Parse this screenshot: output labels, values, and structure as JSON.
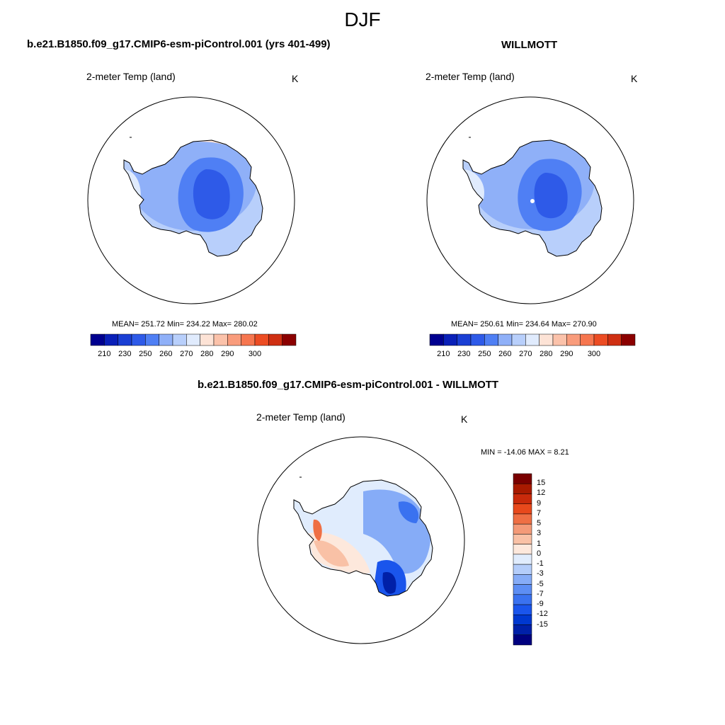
{
  "figure": {
    "title": "DJF"
  },
  "colors": {
    "continent_outline": "#000000",
    "circle_outline": "#000000",
    "abs_palette": [
      "#00008f",
      "#0a20b8",
      "#1a3fd4",
      "#2e5ae8",
      "#4f7ff4",
      "#8fb0f8",
      "#b8cffb",
      "#e0ebfd",
      "#fde3d6",
      "#fbc2aa",
      "#f99c7c",
      "#f6764f",
      "#ec4c23",
      "#cf2f12",
      "#8b0000"
    ],
    "diff_palette": [
      "#00007f",
      "#0020a8",
      "#0038d0",
      "#1a55ec",
      "#3a72f0",
      "#5d8ef4",
      "#86acf7",
      "#b4cdfa",
      "#e0ecfd",
      "#fde8dc",
      "#f9c1a6",
      "#f49a78",
      "#ef6f44",
      "#e8491c",
      "#c92a0b",
      "#a81a00",
      "#7a0000"
    ]
  },
  "chart_data": [
    {
      "type": "map",
      "panel": "left",
      "title": "b.e21.B1850.f09_g17.CMIP6-esm-piControl.001 (yrs 401-499)",
      "variable": "2-meter Temp (land)",
      "units": "K",
      "region": "Antarctica (polar stereographic)",
      "stats": {
        "mean": "251.72",
        "min": "234.22",
        "max": "280.02"
      },
      "stats_text": "MEAN= 251.72  Min= 234.22  Max= 280.02",
      "colorbar": {
        "orientation": "horizontal",
        "tick_labels": [
          "210",
          "230",
          "250",
          "260",
          "270",
          "280",
          "290",
          "300"
        ]
      }
    },
    {
      "type": "map",
      "panel": "right",
      "title": "WILLMOTT",
      "variable": "2-meter Temp (land)",
      "units": "K",
      "region": "Antarctica (polar stereographic)",
      "stats": {
        "mean": "250.61",
        "min": "234.64",
        "max": "270.90"
      },
      "stats_text": "MEAN= 250.61  Min= 234.64  Max= 270.90",
      "colorbar": {
        "orientation": "horizontal",
        "tick_labels": [
          "210",
          "230",
          "250",
          "260",
          "270",
          "280",
          "290",
          "300"
        ]
      }
    },
    {
      "type": "map",
      "panel": "difference",
      "title": "b.e21.B1850.f09_g17.CMIP6-esm-piControl.001 - WILLMOTT",
      "variable": "2-meter Temp (land)",
      "units": "K",
      "region": "Antarctica (polar stereographic)",
      "stats": {
        "min": "-14.06",
        "max": "8.21"
      },
      "stats_text": "MIN = -14.06 MAX =   8.21",
      "colorbar": {
        "orientation": "vertical",
        "tick_labels": [
          "15",
          "12",
          "9",
          "7",
          "5",
          "3",
          "1",
          "0",
          "-1",
          "-3",
          "-5",
          "-7",
          "-9",
          "-12",
          "-15"
        ]
      }
    }
  ]
}
